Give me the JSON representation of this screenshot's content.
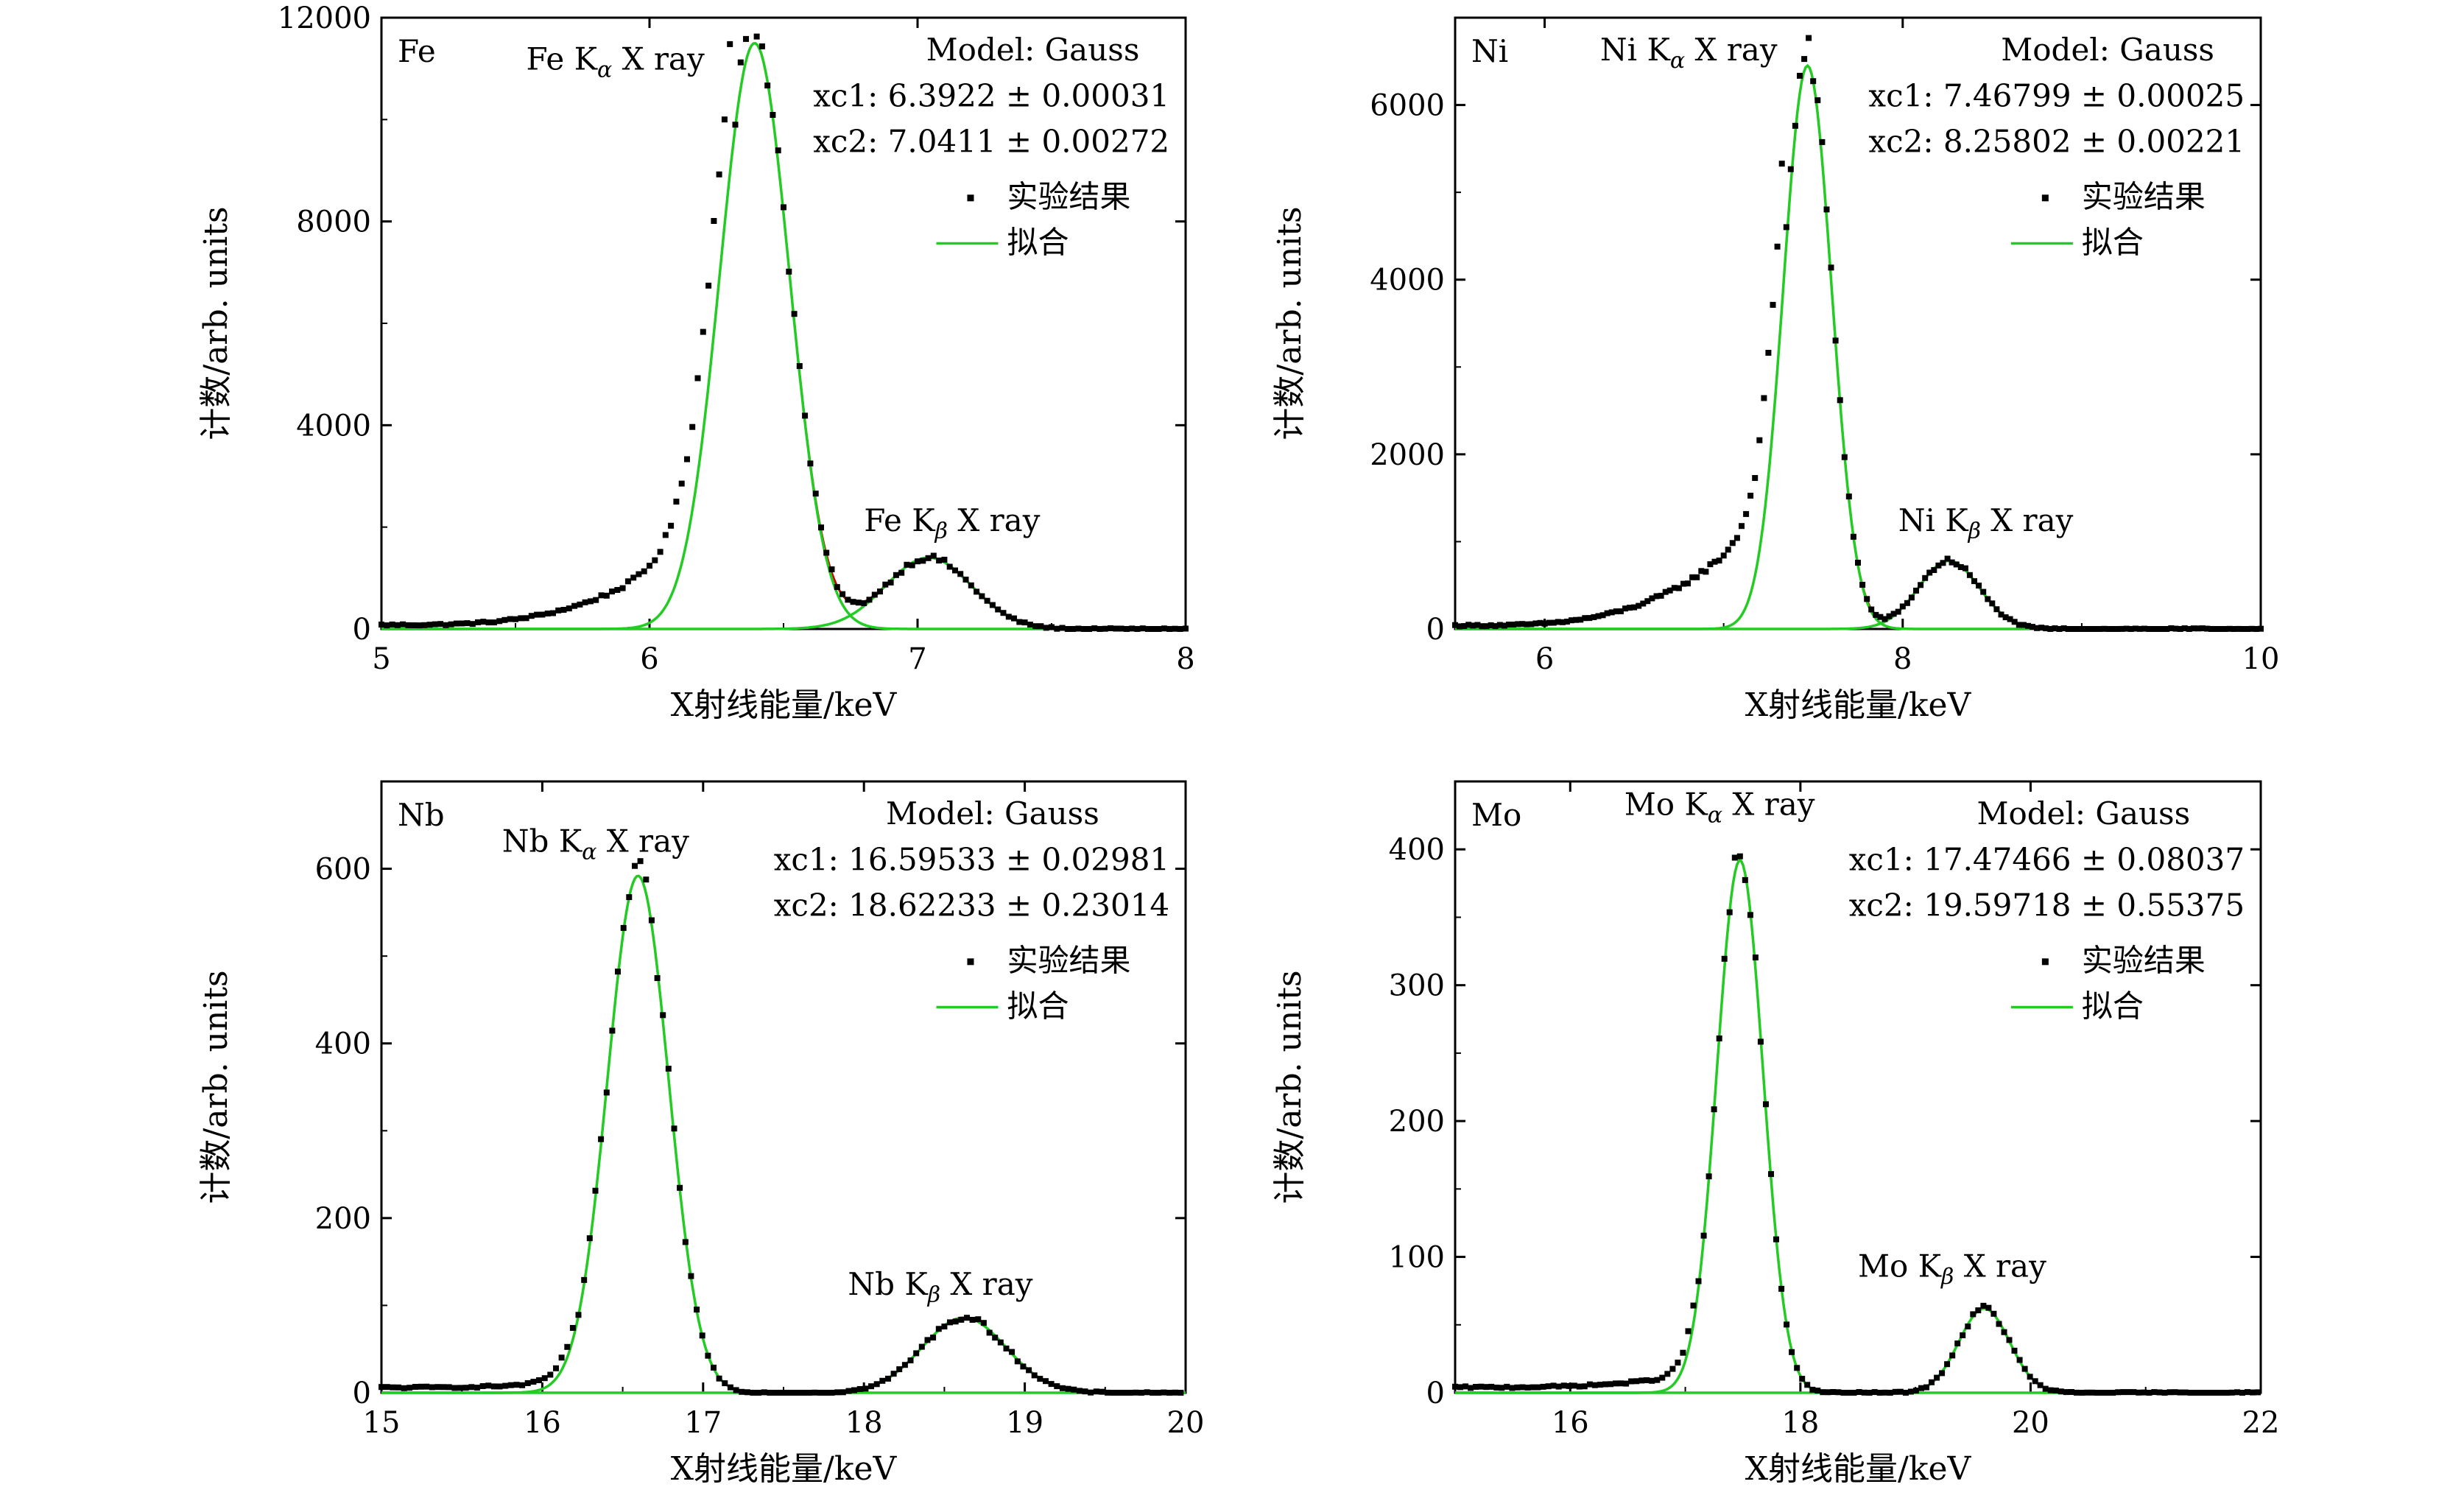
{
  "chart_data": [
    {
      "type": "scatter",
      "panel_label": "Fe",
      "xlabel": "X射线能量/keV",
      "ylabel": "计数/arb. units",
      "xlim": [
        5,
        8
      ],
      "ylim": [
        0,
        12000
      ],
      "xticks": [
        5,
        6,
        7,
        8
      ],
      "yticks": [
        0,
        4000,
        8000,
        12000
      ],
      "model_text": "Model: Gauss",
      "fit_params": [
        "xc1: 6.3922 ± 0.00031",
        "xc2: 7.0411 ± 0.00272"
      ],
      "peak_labels": [
        {
          "element": "Fe",
          "line": "K",
          "sub": "α",
          "suffix": " X ray"
        },
        {
          "element": "Fe",
          "line": "K",
          "sub": "β",
          "suffix": " X ray"
        }
      ],
      "legend": [
        {
          "label": "实验结果",
          "marker": "square",
          "color": "#000000"
        },
        {
          "label": "拟合",
          "marker": "line",
          "color": "#22cc22"
        }
      ],
      "peaks": [
        {
          "center": 6.3922,
          "amp": 11500,
          "sigma": 0.13
        },
        {
          "center": 7.0411,
          "amp": 1400,
          "sigma": 0.16
        }
      ],
      "tail": {
        "start": 5.0,
        "end": 6.3,
        "y_start": 80,
        "y_end": 2500
      },
      "point_step": 0.02,
      "overlap_color": "#cc0000"
    },
    {
      "type": "scatter",
      "panel_label": "Ni",
      "xlabel": "X射线能量/keV",
      "ylabel": "计数/arb. units",
      "xlim": [
        5.5,
        10
      ],
      "ylim": [
        0,
        7000
      ],
      "xticks": [
        6,
        8,
        10
      ],
      "yticks": [
        0,
        2000,
        4000,
        6000
      ],
      "model_text": "Model: Gauss",
      "fit_params": [
        "xc1: 7.46799 ± 0.00025",
        "xc2: 8.25802 ± 0.00221"
      ],
      "peak_labels": [
        {
          "element": "Ni",
          "line": "K",
          "sub": "α",
          "suffix": " X ray"
        },
        {
          "element": "Ni",
          "line": "K",
          "sub": "β",
          "suffix": " X ray"
        }
      ],
      "legend": [
        {
          "label": "实验结果",
          "marker": "square",
          "color": "#000000"
        },
        {
          "label": "拟合",
          "marker": "line",
          "color": "#22cc22"
        }
      ],
      "peaks": [
        {
          "center": 7.46799,
          "amp": 6450,
          "sigma": 0.135
        },
        {
          "center": 8.25802,
          "amp": 780,
          "sigma": 0.17
        }
      ],
      "tail": {
        "start": 5.5,
        "end": 7.35,
        "y_start": 40,
        "y_end": 1600
      },
      "point_step": 0.025,
      "overlap_color": "#cc0000"
    },
    {
      "type": "scatter",
      "panel_label": "Nb",
      "xlabel": "X射线能量/keV",
      "ylabel": "计数/arb. units",
      "xlim": [
        15,
        20
      ],
      "ylim": [
        0,
        700
      ],
      "xticks": [
        15,
        16,
        17,
        18,
        19,
        20
      ],
      "yticks": [
        0,
        200,
        400,
        600
      ],
      "model_text": "Model: Gauss",
      "fit_params": [
        "xc1: 16.59533 ± 0.02981",
        "xc2: 18.62233 ± 0.23014"
      ],
      "peak_labels": [
        {
          "element": "Nb",
          "line": "K",
          "sub": "α",
          "suffix": " X ray"
        },
        {
          "element": "Nb",
          "line": "K",
          "sub": "β",
          "suffix": " X ray"
        }
      ],
      "legend": [
        {
          "label": "实验结果",
          "marker": "square",
          "color": "#000000"
        },
        {
          "label": "拟合",
          "marker": "line",
          "color": "#22cc22"
        }
      ],
      "peaks": [
        {
          "center": 16.59533,
          "amp": 592,
          "sigma": 0.19
        },
        {
          "center": 18.62233,
          "amp": 86,
          "sigma": 0.26
        }
      ],
      "tail": {
        "start": 15.0,
        "end": 16.2,
        "y_start": 6,
        "y_end": 14
      },
      "point_step": 0.035,
      "overlap_color": "#cc0000"
    },
    {
      "type": "scatter",
      "panel_label": "Mo",
      "xlabel": "X射线能量/keV",
      "ylabel": "计数/arb. units",
      "xlim": [
        15,
        22
      ],
      "ylim": [
        0,
        450
      ],
      "xticks": [
        16,
        18,
        20,
        22
      ],
      "yticks": [
        0,
        100,
        200,
        300,
        400
      ],
      "model_text": "Model: Gauss",
      "fit_params": [
        "xc1: 17.47466 ± 0.08037",
        "xc2: 19.59718 ± 0.55375"
      ],
      "peak_labels": [
        {
          "element": "Mo",
          "line": "K",
          "sub": "α",
          "suffix": " X ray"
        },
        {
          "element": "Mo",
          "line": "K",
          "sub": "β",
          "suffix": " X ray"
        }
      ],
      "legend": [
        {
          "label": "实验结果",
          "marker": "square",
          "color": "#000000"
        },
        {
          "label": "拟合",
          "marker": "line",
          "color": "#22cc22"
        }
      ],
      "peaks": [
        {
          "center": 17.47466,
          "amp": 392,
          "sigma": 0.2
        },
        {
          "center": 19.59718,
          "amp": 62,
          "sigma": 0.22
        }
      ],
      "tail": {
        "start": 15.0,
        "end": 17.1,
        "y_start": 4,
        "y_end": 14
      },
      "point_step": 0.045,
      "overlap_color": "#cc0000"
    }
  ]
}
